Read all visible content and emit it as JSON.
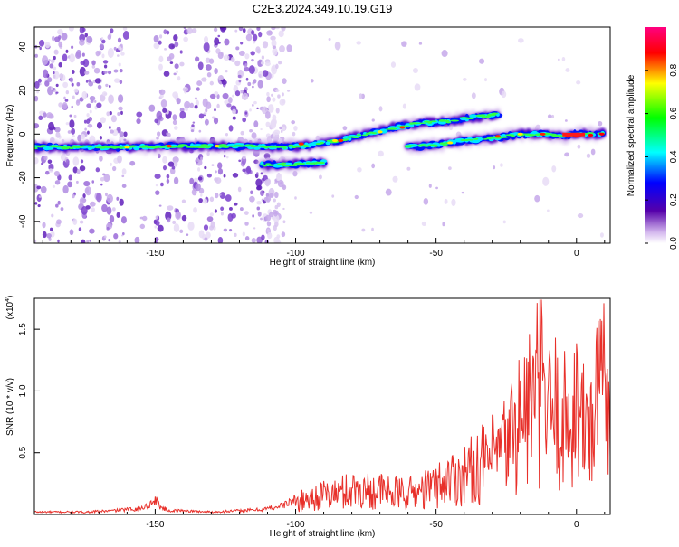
{
  "title": "C2E3.2024.349.10.19.G19",
  "chart_data": [
    {
      "type": "heatmap",
      "xlabel": "Height of straight line (km)",
      "ylabel": "Frequency (Hz)",
      "xlim": [
        -193,
        12
      ],
      "ylim": [
        -50,
        49
      ],
      "x_ticks": [
        -150,
        -100,
        -50,
        0
      ],
      "y_ticks": [
        -40,
        -20,
        0,
        20,
        40
      ],
      "colorbar": {
        "label": "Normalized spectral amplitude",
        "range": [
          0,
          1
        ],
        "ticks": [
          "0.0",
          "0.2",
          "0.4",
          "0.6",
          "0.8"
        ],
        "tick_values": [
          0.0,
          0.2,
          0.4,
          0.6,
          0.8
        ],
        "colors": [
          "#ffffff",
          "#5500aa",
          "#0000ff",
          "#00ffff",
          "#00ff00",
          "#ffff00",
          "#ff0000",
          "#ff0080"
        ]
      },
      "traces": [
        {
          "x": [
            -193,
            -160,
            -140,
            -120,
            -105,
            -95,
            -85,
            -75,
            -65,
            -55,
            -45,
            -35,
            -28
          ],
          "y": [
            -6,
            -6,
            -5.5,
            -5.5,
            -6,
            -5,
            -3,
            0,
            3,
            5,
            6,
            8,
            9
          ]
        },
        {
          "x": [
            -60,
            -50,
            -40,
            -30,
            -20,
            -10,
            -5,
            0,
            5,
            10
          ],
          "y": [
            -6,
            -5,
            -3,
            -2,
            0,
            0,
            -1,
            0,
            0,
            0
          ]
        },
        {
          "x": [
            -112,
            -100,
            -90
          ],
          "y": [
            -14,
            -14,
            -13
          ]
        }
      ],
      "grid": false
    },
    {
      "type": "line",
      "xlabel": "Height of straight line (km)",
      "ylabel": "SNR (10 * v/v)",
      "y_multiplier": "(x10",
      "y_multiplier_exp": "4",
      "xlim": [
        -193,
        12
      ],
      "ylim": [
        0,
        1.75
      ],
      "x_ticks": [
        -150,
        -100,
        -50,
        0
      ],
      "y_ticks": [
        0.5,
        1.0,
        1.5
      ],
      "y_tick_labels": [
        "0.5",
        "1.0",
        "1.5"
      ],
      "series": [
        {
          "color": "#e8302a",
          "x": [
            -193,
            -185,
            -175,
            -165,
            -155,
            -152,
            -150,
            -148,
            -145,
            -140,
            -130,
            -120,
            -112,
            -105,
            -100,
            -95,
            -90,
            -85,
            -80,
            -75,
            -70,
            -65,
            -60,
            -55,
            -50,
            -45,
            -40,
            -35,
            -30,
            -25,
            -20,
            -15,
            -12,
            -10,
            -8,
            -5,
            -2,
            0,
            2,
            5,
            8,
            10,
            12
          ],
          "y": [
            0.02,
            0.02,
            0.02,
            0.03,
            0.05,
            0.08,
            0.12,
            0.06,
            0.03,
            0.03,
            0.02,
            0.03,
            0.04,
            0.07,
            0.12,
            0.17,
            0.2,
            0.22,
            0.26,
            0.25,
            0.25,
            0.22,
            0.22,
            0.25,
            0.3,
            0.38,
            0.42,
            0.5,
            0.58,
            0.72,
            1.0,
            1.2,
            1.35,
            1.0,
            1.1,
            0.95,
            1.0,
            1.2,
            0.9,
            0.95,
            1.2,
            1.7,
            1.1
          ]
        }
      ],
      "grid": false
    }
  ]
}
